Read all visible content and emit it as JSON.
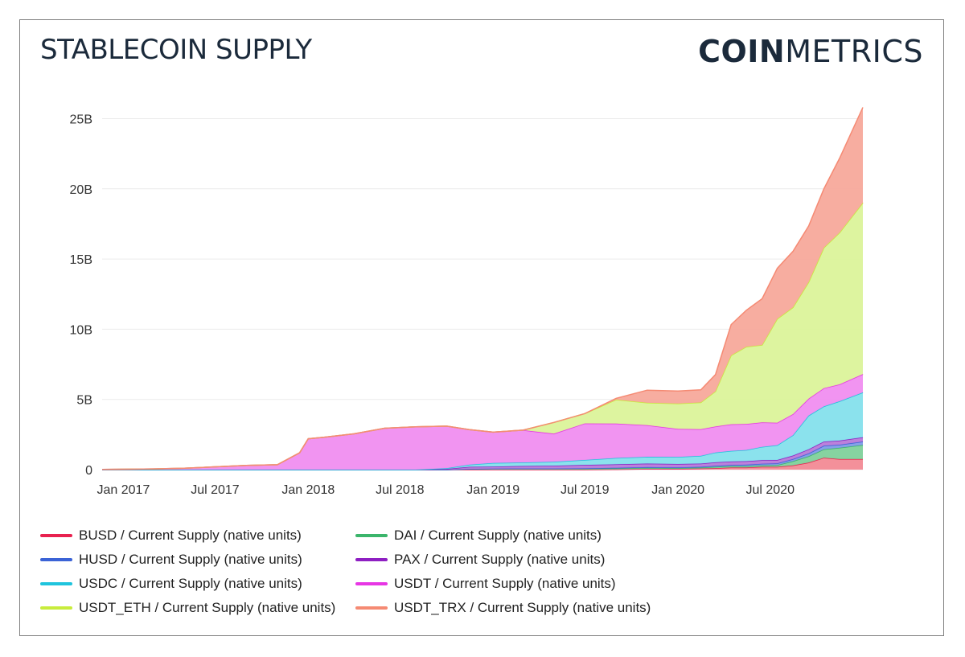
{
  "header": {
    "title": "STABLECOIN SUPPLY",
    "logo_bold": "COIN",
    "logo_light": "METRICS"
  },
  "chart_data": {
    "type": "area",
    "stacked": true,
    "title": "STABLECOIN SUPPLY",
    "xlabel": "",
    "ylabel": "",
    "x_ticks": [
      "Jan 2017",
      "Jul 2017",
      "Jan 2018",
      "Jul 2018",
      "Jan 2019",
      "Jul 2019",
      "Jan 2020",
      "Jul 2020"
    ],
    "y_ticks": [
      "0",
      "5B",
      "10B",
      "15B",
      "20B",
      "25B"
    ],
    "ylim": [
      0,
      26000000000
    ],
    "xlim": [
      "2016-11-20",
      "2020-12-31"
    ],
    "grid": "horizontal",
    "legend_position": "bottom",
    "dates": [
      "2016-11-20",
      "2017-03-01",
      "2017-05-01",
      "2017-07-01",
      "2017-09-01",
      "2017-11-01",
      "2017-12-15",
      "2018-01-01",
      "2018-02-01",
      "2018-04-01",
      "2018-06-01",
      "2018-08-01",
      "2018-10-01",
      "2018-11-15",
      "2019-01-01",
      "2019-03-01",
      "2019-05-01",
      "2019-07-01",
      "2019-09-01",
      "2019-11-01",
      "2020-01-01",
      "2020-02-15",
      "2020-03-15",
      "2020-04-15",
      "2020-05-15",
      "2020-06-15",
      "2020-07-15",
      "2020-08-15",
      "2020-09-15",
      "2020-10-15",
      "2020-11-15",
      "2020-12-31"
    ],
    "series": [
      {
        "name": "BUSD / Current Supply (native units)",
        "color": "#e8214f",
        "fill": "#f28a95",
        "values": [
          0,
          0,
          0,
          0,
          0,
          0,
          0,
          0,
          0,
          0,
          0,
          0,
          0,
          0,
          0,
          0,
          0,
          0,
          0.02,
          0.05,
          0.05,
          0.08,
          0.1,
          0.15,
          0.15,
          0.2,
          0.2,
          0.3,
          0.5,
          0.85,
          0.75,
          0.75
        ]
      },
      {
        "name": "DAI / Current Supply (native units)",
        "color": "#3bb56b",
        "fill": "#7fd19b",
        "values": [
          0,
          0,
          0,
          0,
          0,
          0,
          0,
          0,
          0,
          0,
          0,
          0,
          0,
          0.05,
          0.07,
          0.08,
          0.08,
          0.07,
          0.07,
          0.08,
          0.06,
          0.07,
          0.1,
          0.1,
          0.1,
          0.1,
          0.12,
          0.3,
          0.45,
          0.6,
          0.8,
          1.0
        ]
      },
      {
        "name": "HUSD / Current Supply (native units)",
        "color": "#3b63d6",
        "fill": "#7f9be8",
        "values": [
          0,
          0,
          0,
          0,
          0,
          0,
          0,
          0,
          0,
          0,
          0,
          0,
          0,
          0,
          0,
          0,
          0,
          0.02,
          0.04,
          0.05,
          0.05,
          0.05,
          0.07,
          0.08,
          0.1,
          0.12,
          0.12,
          0.15,
          0.2,
          0.25,
          0.22,
          0.25
        ]
      },
      {
        "name": "PAX / Current Supply (native units)",
        "color": "#8e1fc2",
        "fill": "#b77ad9",
        "values": [
          0,
          0,
          0,
          0,
          0,
          0,
          0,
          0,
          0,
          0,
          0,
          0,
          0.05,
          0.15,
          0.15,
          0.18,
          0.2,
          0.25,
          0.25,
          0.25,
          0.24,
          0.23,
          0.25,
          0.25,
          0.25,
          0.25,
          0.25,
          0.25,
          0.3,
          0.3,
          0.3,
          0.3
        ]
      },
      {
        "name": "USDC / Current Supply (native units)",
        "color": "#1fc4dd",
        "fill": "#85e0ec",
        "values": [
          0,
          0,
          0,
          0,
          0,
          0,
          0,
          0,
          0,
          0,
          0,
          0,
          0.05,
          0.15,
          0.25,
          0.25,
          0.28,
          0.35,
          0.45,
          0.48,
          0.5,
          0.55,
          0.7,
          0.75,
          0.8,
          0.95,
          1.05,
          1.45,
          2.4,
          2.5,
          2.8,
          3.2
        ]
      },
      {
        "name": "USDT / Current Supply (native units)",
        "color": "#e736e4",
        "fill": "#f08ef0",
        "values": [
          0.01,
          0.05,
          0.1,
          0.2,
          0.3,
          0.35,
          1.2,
          2.2,
          2.3,
          2.55,
          2.95,
          3.05,
          3.0,
          2.5,
          2.2,
          2.3,
          2.0,
          2.6,
          2.45,
          2.25,
          2.0,
          1.9,
          1.85,
          1.9,
          1.85,
          1.75,
          1.6,
          1.5,
          1.2,
          1.3,
          1.2,
          1.3
        ]
      },
      {
        "name": "USDT_ETH / Current Supply (native units)",
        "color": "#c8ec3c",
        "fill": "#dbf39a",
        "values": [
          0,
          0,
          0,
          0,
          0,
          0,
          0,
          0,
          0,
          0,
          0,
          0,
          0,
          0,
          0,
          0,
          0.8,
          0.7,
          1.7,
          1.6,
          1.8,
          1.9,
          2.5,
          4.9,
          5.5,
          5.5,
          7.4,
          7.6,
          8.3,
          10.0,
          10.8,
          12.2
        ]
      },
      {
        "name": "USDT_TRX / Current Supply (native units)",
        "color": "#f58a73",
        "fill": "#f7a99b",
        "values": [
          0,
          0,
          0,
          0,
          0,
          0,
          0,
          0,
          0,
          0,
          0,
          0,
          0,
          0,
          0,
          0,
          0,
          0,
          0.1,
          0.9,
          0.9,
          0.9,
          1.2,
          2.2,
          2.6,
          3.3,
          3.6,
          4.0,
          4.0,
          4.2,
          5.3,
          6.8
        ]
      }
    ],
    "value_unit_note": "values in billions"
  }
}
